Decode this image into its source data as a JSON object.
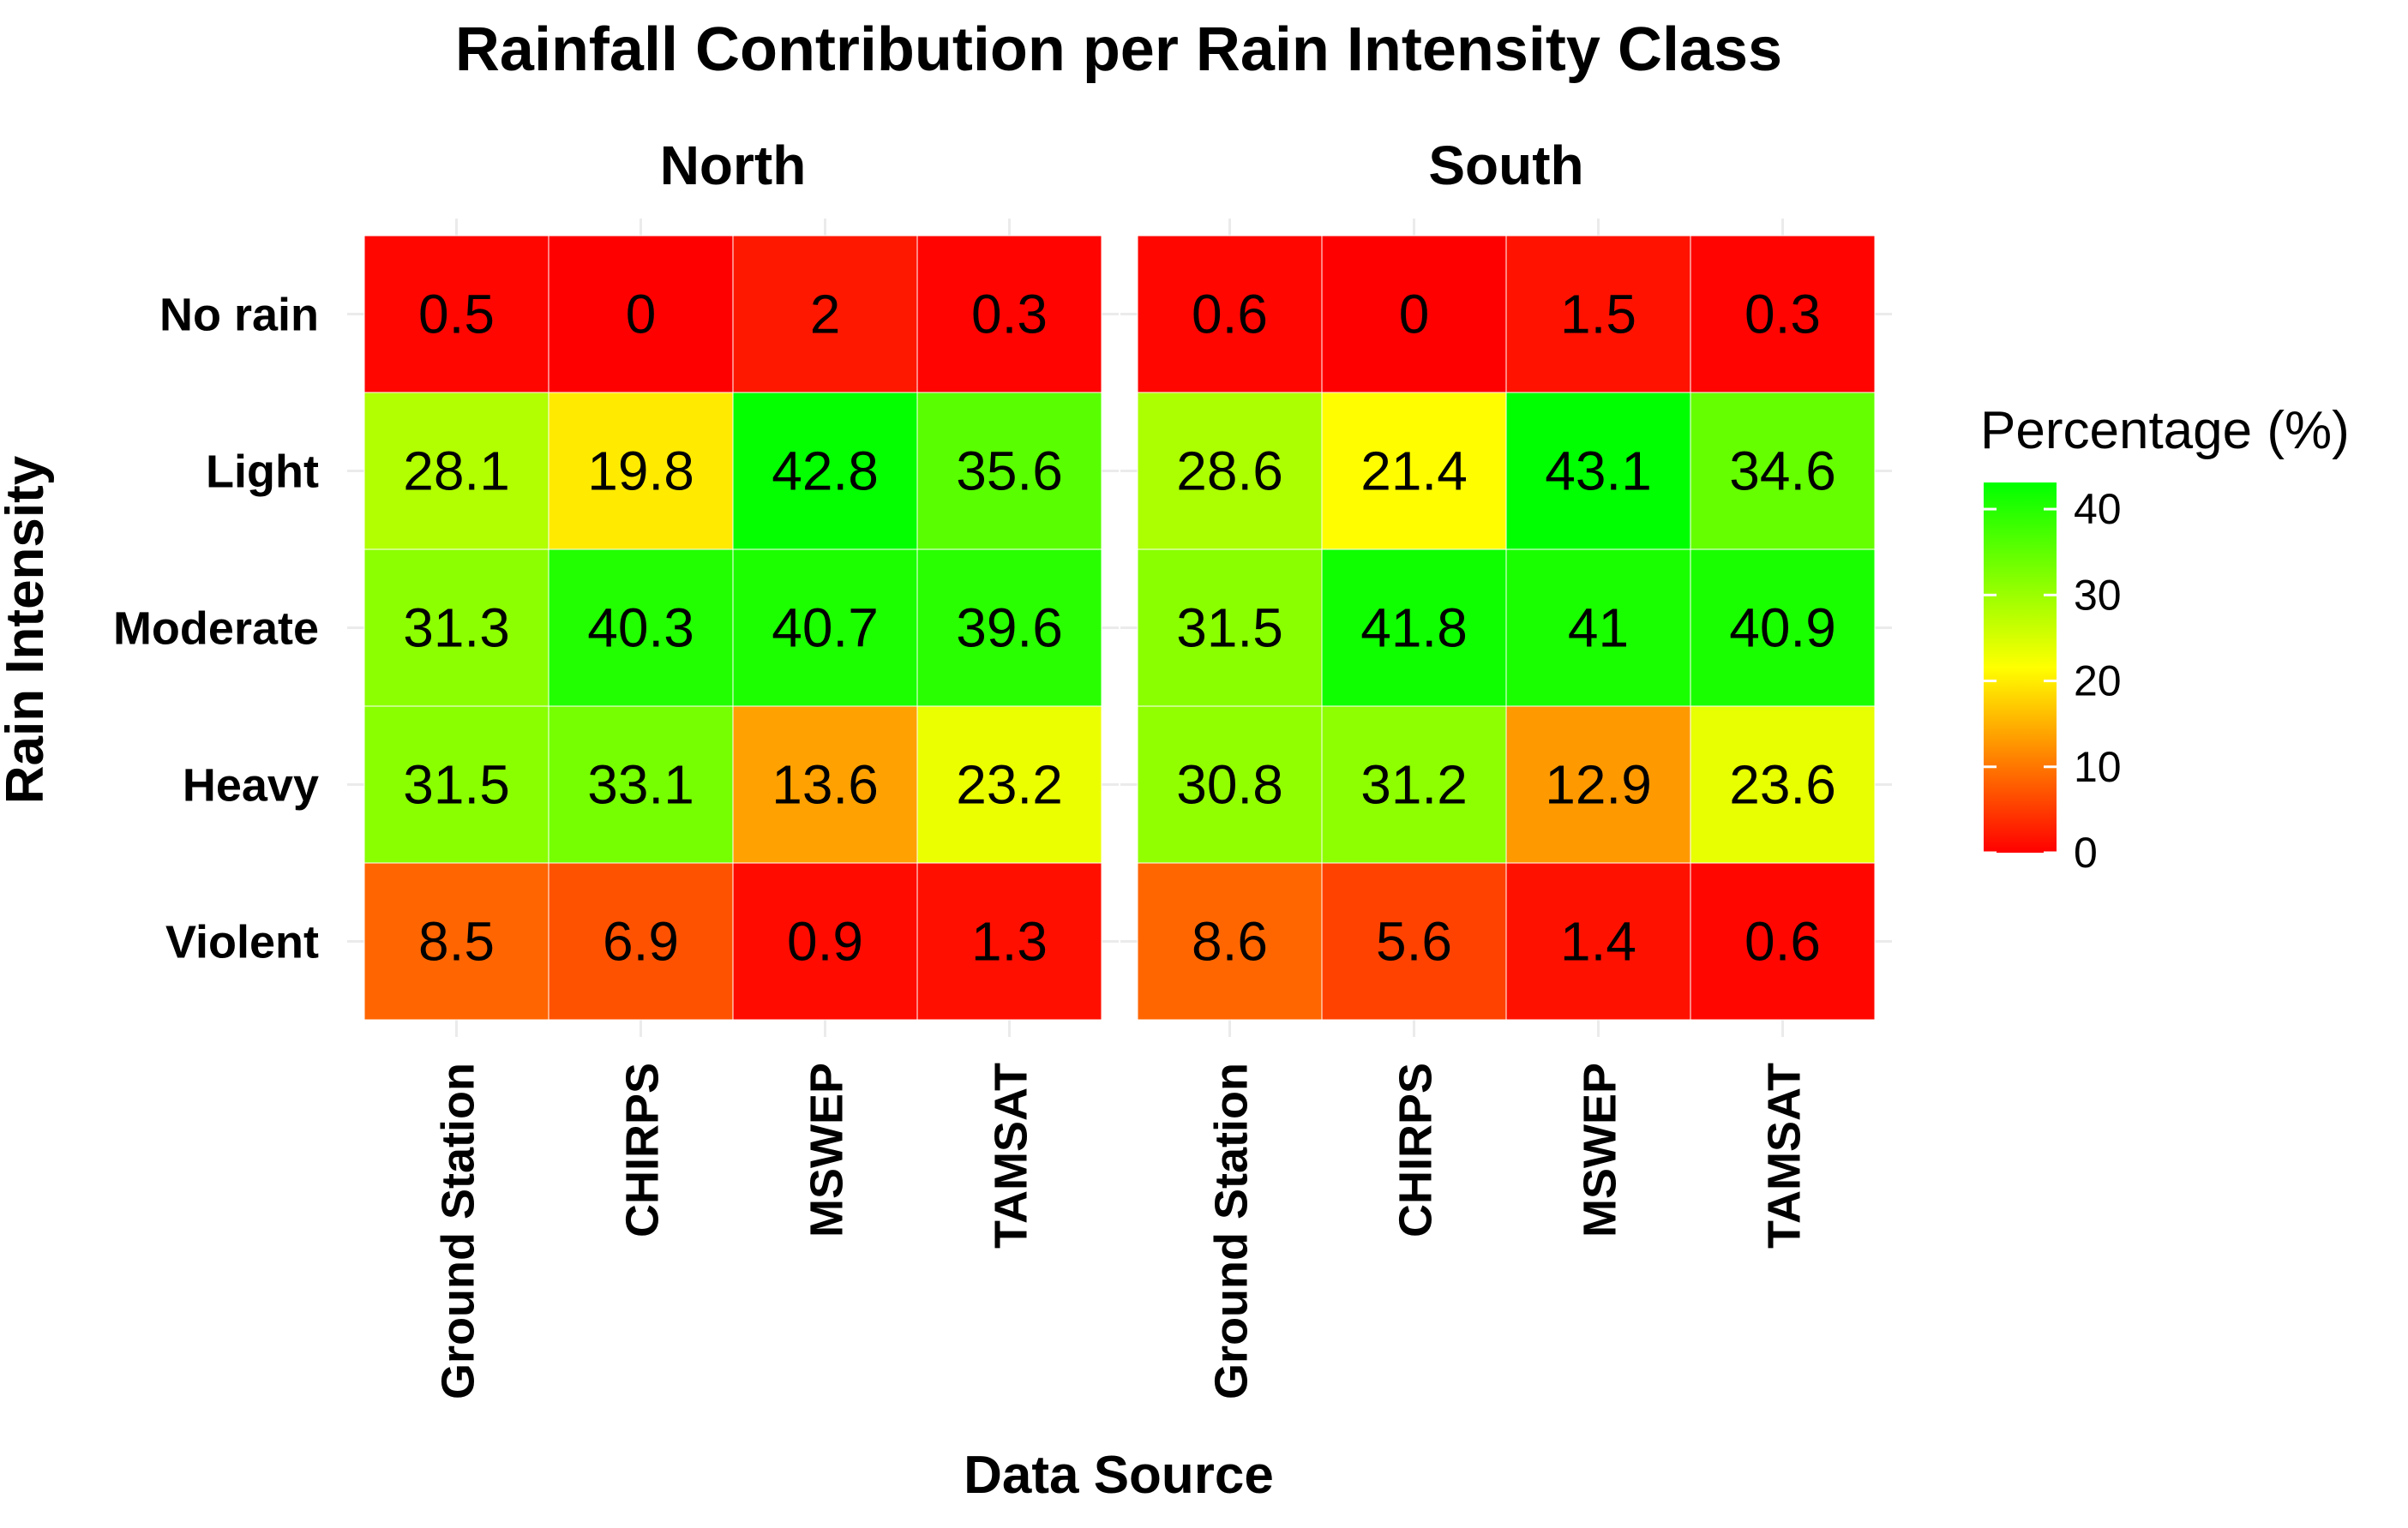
{
  "chart_data": {
    "type": "heatmap",
    "title": "Rainfall Contribution per Rain Intensity Class",
    "xlabel": "Data Source",
    "ylabel": "Rain Intensity",
    "x_categories": [
      "Ground Station",
      "CHIRPS",
      "MSWEP",
      "TAMSAT"
    ],
    "y_categories": [
      "No rain",
      "Light",
      "Moderate",
      "Heavy",
      "Violent"
    ],
    "panels": [
      {
        "name": "North",
        "values": [
          [
            "0.5",
            "0",
            "2",
            "0.3"
          ],
          [
            "28.1",
            "19.8",
            "42.8",
            "35.6"
          ],
          [
            "31.3",
            "40.3",
            "40.7",
            "39.6"
          ],
          [
            "31.5",
            "33.1",
            "13.6",
            "23.2"
          ],
          [
            "8.5",
            "6.9",
            "0.9",
            "1.3"
          ]
        ]
      },
      {
        "name": "South",
        "values": [
          [
            "0.6",
            "0",
            "1.5",
            "0.3"
          ],
          [
            "28.6",
            "21.4",
            "43.1",
            "34.6"
          ],
          [
            "31.5",
            "41.8",
            "41",
            "40.9"
          ],
          [
            "30.8",
            "31.2",
            "12.9",
            "23.6"
          ],
          [
            "8.6",
            "5.6",
            "1.4",
            "0.6"
          ]
        ]
      }
    ],
    "legend": {
      "title": "Percentage (%)",
      "ticks": [
        "0",
        "10",
        "20",
        "30",
        "40"
      ],
      "range": [
        0,
        43.1
      ],
      "colors": [
        "#ff0000",
        "#ffff00",
        "#00ff00"
      ]
    },
    "grid": true,
    "legend_position": "right"
  }
}
